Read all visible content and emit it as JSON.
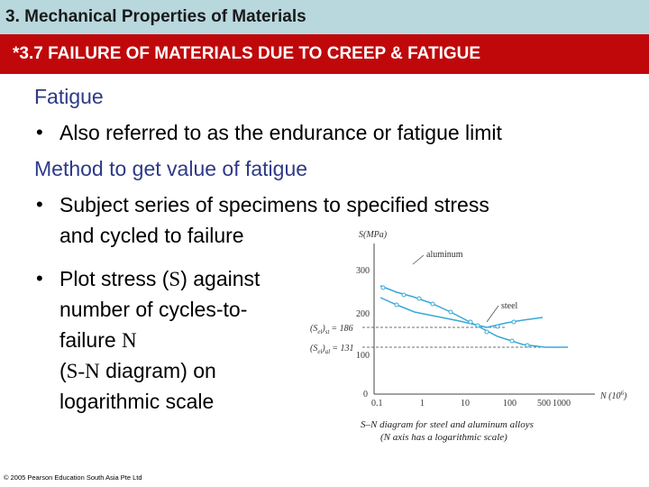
{
  "header": {
    "chapter_title": "3. Mechanical Properties of Materials",
    "section_title": "*3.7 FAILURE OF MATERIALS DUE TO CREEP & FATIGUE"
  },
  "body": {
    "heading1": "Fatigue",
    "bullet1": "Also referred to as the endurance or fatigue limit",
    "heading2": "Method to get value of fatigue",
    "bullet2_line1": "Subject series of specimens to specified stress",
    "bullet2_line2": "and cycled to failure",
    "bullet3_line1_a": "Plot stress (",
    "bullet3_line1_S": "S",
    "bullet3_line1_b": ") against",
    "bullet3_line2": "number of cycles-to-",
    "bullet3_line3_a": "failure ",
    "bullet3_line3_N": "N",
    "bullet3_line4_a": "(",
    "bullet3_line4_SN": "S-N",
    "bullet3_line4_b": " diagram) on",
    "bullet3_line5": "logarithmic scale"
  },
  "figure": {
    "y_axis_label": "S(MPa)",
    "x_axis_label": "N (10",
    "x_axis_label_exp": "6",
    "x_axis_label_close": ")",
    "y_ticks": [
      "300",
      "200",
      "100",
      "0"
    ],
    "x_ticks": [
      "0.1",
      "1",
      "10",
      "100",
      "500",
      "1000"
    ],
    "series_aluminum": "aluminum",
    "series_steel": "steel",
    "ann_steel": "(S",
    "ann_steel_sub": "el",
    "ann_steel_sub2": "st",
    "ann_steel_val": "= 186",
    "ann_al": "(S",
    "ann_al_sub": "el",
    "ann_al_sub2": "al",
    "ann_al_val": "= 131",
    "caption_line1": "S–N diagram for steel and aluminum alloys",
    "caption_line2": "(N axis has a logarithmic scale)",
    "colors": {
      "curve": "#3aa9d6",
      "axis": "#444444"
    }
  },
  "footer": {
    "copyright": "© 2005 Pearson Education South Asia Pte Ltd"
  }
}
